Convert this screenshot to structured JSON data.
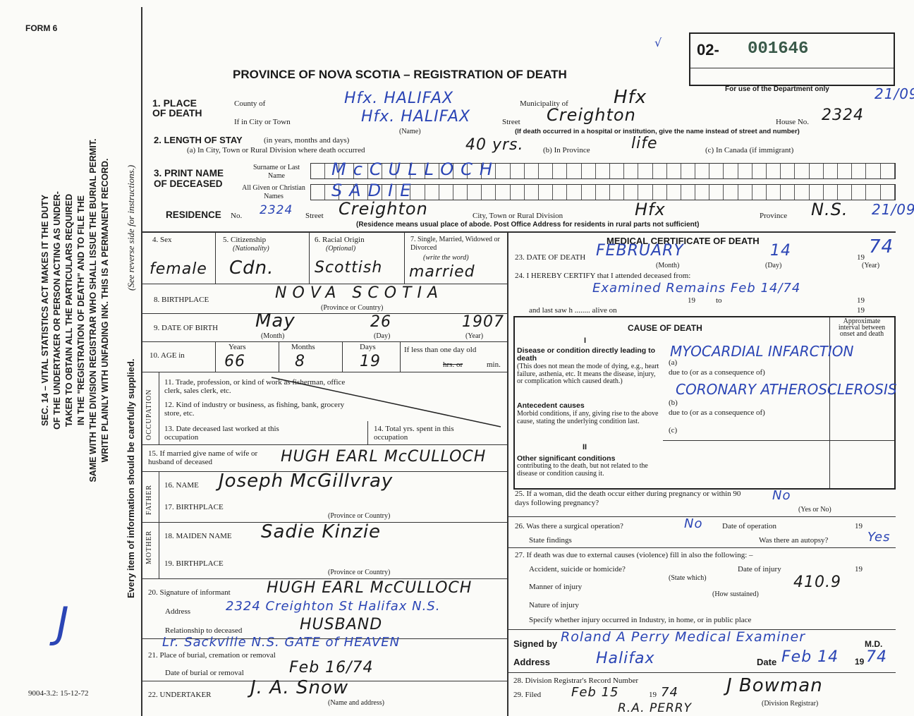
{
  "form": {
    "number": "FORM 6",
    "title": "PROVINCE OF NOVA SCOTIA – REGISTRATION OF DEATH",
    "reg_prefix": "02-",
    "reg_number": "001646",
    "dept_note": "For use of the Department only",
    "tick": "√",
    "stamp1": "21/09",
    "stamp2": "21/09",
    "print_code": "9004-3.2: 15-12-72"
  },
  "sidebar": {
    "lines": [
      "SEC. 14 – VITAL STATISTICS ACT MAKES IT THE DUTY",
      "OF THE UNDERTAKER OR PERSON ACTING AS UNDER-",
      "TAKER TO OBTAIN ALL THE PARTICULARS REQUIRED",
      "IN THE \"REGISTRATION OF DEATH\" AND TO FILE THE",
      "SAME WITH THE DIVISION REGISTRAR WHO SHALL ISSUE THE BURIAL PERMIT.",
      "WRITE PLAINLY WITH UNFADING INK. THIS IS A PERMANENT RECORD."
    ],
    "every_item": "Every item of information should be carefully supplied.",
    "see_reverse": "(See reverse side for instructions.)",
    "mark": "J"
  },
  "f1": {
    "label": "1. PLACE OF DEATH",
    "county_label": "County of",
    "county": "Hfx. HALIFAX",
    "municipality_label": "Municipality of",
    "municipality": "Hfx",
    "city_label": "If in City or Town",
    "city": "Hfx. HALIFAX",
    "name_note": "(Name)",
    "street_label": "Street",
    "street": "Creighton",
    "house_label": "House No.",
    "house": "2324",
    "hospital_note": "(If death occurred in a hospital or institution, give the name instead of street and number)"
  },
  "f2": {
    "label": "2. LENGTH OF STAY",
    "label_note": "(in years, months and days)",
    "a_label": "(a) In City, Town or Rural Division where death occurred",
    "a": "40 yrs.",
    "b_label": "(b) In Province",
    "b": "life",
    "c_label": "(c) In Canada (if immigrant)"
  },
  "f3": {
    "label": "3. PRINT NAME OF DECEASED",
    "surname_label": "Surname or Last Name",
    "surname": "McCULLOCH",
    "given_label": "All Given or Christian Names",
    "given": "SADIE"
  },
  "residence": {
    "label": "RESIDENCE",
    "no_label": "No.",
    "no": "2324",
    "street_label": "Street",
    "street": "Creighton",
    "city_label": "City, Town or Rural Division",
    "city": "Hfx",
    "province_label": "Province",
    "province": "N.S.",
    "note": "(Residence means usual place of abode. Post Office Address for residents in rural parts not sufficient)"
  },
  "f4": {
    "label": "4. Sex",
    "value": "female"
  },
  "f5": {
    "label": "5. Citizenship",
    "sub": "(Nationality)",
    "value": "Cdn."
  },
  "f6": {
    "label": "6. Racial Origin",
    "sub": "(Optional)",
    "value": "Scottish"
  },
  "f7": {
    "label": "7. Single, Married, Widowed or Divorced",
    "sub": "(write the word)",
    "value": "married"
  },
  "f8": {
    "label": "8. BIRTHPLACE",
    "value": "NOVA SCOTIA",
    "note": "(Province or Country)"
  },
  "f9": {
    "label": "9. DATE OF BIRTH",
    "month": "May",
    "day": "26",
    "year": "1907",
    "month_note": "(Month)",
    "day_note": "(Day)",
    "year_note": "(Year)"
  },
  "f10": {
    "label": "10. AGE in",
    "years_label": "Years",
    "years": "66",
    "months_label": "Months",
    "months": "8",
    "days_label": "Days",
    "days": "19",
    "less_label": "If less than one day old",
    "hrs": "hrs. or",
    "min": "min."
  },
  "occupation": {
    "label": "OCCUPATION",
    "f11": "11. Trade, profession, or kind of work as fisherman, office clerk, sales clerk, etc.",
    "f12": "12. Kind of industry or business, as fishing, bank, grocery store, etc.",
    "f13": "13. Date deceased last worked at this occupation",
    "f14": "14. Total yrs. spent in this occupation"
  },
  "f15": {
    "label": "15. If married give name of wife or husband of deceased",
    "value": "HUGH EARL McCULLOCH"
  },
  "father": {
    "label": "FATHER",
    "name_label": "16. NAME",
    "name": "Joseph McGillvray",
    "birth_label": "17. BIRTHPLACE",
    "note": "(Province or Country)"
  },
  "mother": {
    "label": "MOTHER",
    "name_label": "18. MAIDEN NAME",
    "name": "Sadie Kinzie",
    "birth_label": "19. BIRTHPLACE",
    "note": "(Province or Country)"
  },
  "f20": {
    "label": "20. Signature of informant",
    "value": "HUGH EARL McCULLOCH",
    "address_label": "Address",
    "address": "2324 Creighton St Halifax N.S.",
    "rel_label": "Relationship to deceased",
    "rel": "HUSBAND"
  },
  "f21": {
    "label": "21. Place of burial, cremation or removal",
    "value": "Lr. Sackville N.S.  GATE of HEAVEN",
    "date_label": "Date of burial or removal",
    "date": "Feb 16/74"
  },
  "f22": {
    "label": "22. UNDERTAKER",
    "value": "J. A. Snow",
    "note": "(Name and address)"
  },
  "medical": {
    "title": "MEDICAL CERTIFICATE OF DEATH",
    "f23_label": "23. DATE OF DEATH",
    "month": "FEBRUARY",
    "day": "14",
    "year_prefix": "19",
    "year": "74",
    "month_note": "(Month)",
    "day_note": "(Day)",
    "year_note": "(Year)",
    "f24_label": "24. I HEREBY CERTIFY that I attended deceased from:",
    "f24_value": "Examined Remains Feb 14/74",
    "f24_19a": "19",
    "f24_to": "to",
    "f24_19b": "19",
    "last_saw": "and last saw h ........ alive on",
    "last_19": "19"
  },
  "cause": {
    "title": "CAUSE OF DEATH",
    "interval": "Approximate interval between onset and death",
    "part1": "I",
    "direct_label": "Disease or condition directly leading to death",
    "direct_note": "(This does not mean the mode of dying, e.g., heart failure, asthenia, etc. It means the disease, injury, or complication which caused death.)",
    "a_label": "(a)",
    "a": "MYOCARDIAL INFARCTION",
    "due1": "due to (or as a consequence of)",
    "ante_label": "Antecedent causes",
    "ante_note": "Morbid conditions, if any, giving rise to the above cause, stating the underlying condition last.",
    "b_label": "(b)",
    "b": "CORONARY ATHEROSCLEROSIS",
    "due2": "due to (or as a consequence of)",
    "c_label": "(c)",
    "part2": "II",
    "other_label": "Other significant conditions",
    "other_note": "contributing to the death, but not related to the disease or condition causing it."
  },
  "f25": {
    "label": "25. If a woman, did the death occur either during pregnancy or within 90 days following pregnancy?",
    "value": "No",
    "note": "(Yes or No)"
  },
  "f26": {
    "label": "26. Was there a surgical operation?",
    "value": "No",
    "date_label": "Date of operation",
    "date_19": "19",
    "findings_label": "State findings",
    "autopsy_label": "Was there an autopsy?",
    "autopsy": "Yes"
  },
  "f27": {
    "label": "27. If death was due to external causes (violence) fill in also the following: –",
    "accident_label": "Accident, suicide or homicide?",
    "state_which": "(State which)",
    "injury_date_label": "Date of injury",
    "injury_19": "19",
    "manner_label": "Manner of injury",
    "manner": "410.9",
    "how": "(How sustained)",
    "nature_label": "Nature of injury",
    "specify_label": "Specify whether injury occurred in Industry, in home, or in public place"
  },
  "signature": {
    "signed_label": "Signed by",
    "signed": "Roland A Perry Medical Examiner",
    "md": "M.D.",
    "address_label": "Address",
    "address": "Halifax",
    "date_label": "Date",
    "date": "Feb 14",
    "year_prefix": "19",
    "year": "74"
  },
  "registrar": {
    "f28_label": "28. Division Registrar's Record Number",
    "f29_label": "29. Filed",
    "filed": "Feb 15",
    "year_prefix": "19",
    "year": "74",
    "signature": "J Bowman",
    "sig_note": "(Division Registrar)",
    "below": "R.A. PERRY"
  }
}
